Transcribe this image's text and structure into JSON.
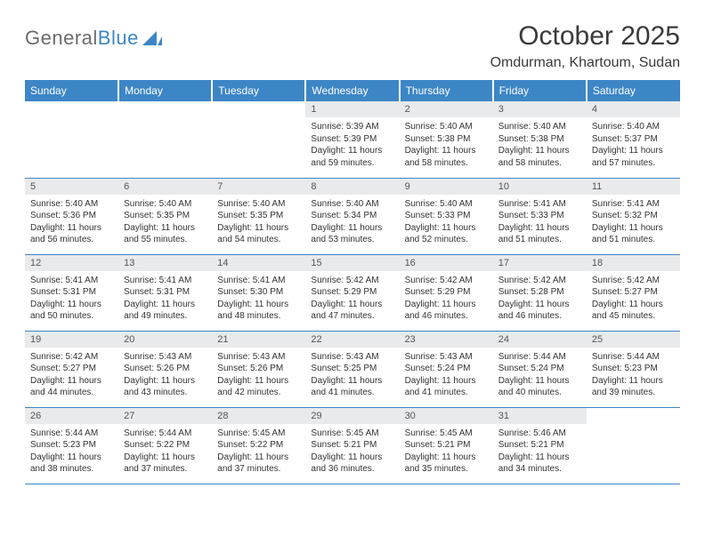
{
  "brand": {
    "word1": "General",
    "word2": "Blue"
  },
  "title": "October 2025",
  "location": "Omdurman, Khartoum, Sudan",
  "colors": {
    "accent": "#3d86c6",
    "header_bg": "#3d86c6",
    "daynum_bg": "#e9eaeb",
    "text": "#3a3a3a"
  },
  "weekdays": [
    "Sunday",
    "Monday",
    "Tuesday",
    "Wednesday",
    "Thursday",
    "Friday",
    "Saturday"
  ],
  "weeks": [
    [
      null,
      null,
      null,
      {
        "d": "1",
        "sr": "5:39 AM",
        "ss": "5:39 PM",
        "dl": "11 hours and 59 minutes."
      },
      {
        "d": "2",
        "sr": "5:40 AM",
        "ss": "5:38 PM",
        "dl": "11 hours and 58 minutes."
      },
      {
        "d": "3",
        "sr": "5:40 AM",
        "ss": "5:38 PM",
        "dl": "11 hours and 58 minutes."
      },
      {
        "d": "4",
        "sr": "5:40 AM",
        "ss": "5:37 PM",
        "dl": "11 hours and 57 minutes."
      }
    ],
    [
      {
        "d": "5",
        "sr": "5:40 AM",
        "ss": "5:36 PM",
        "dl": "11 hours and 56 minutes."
      },
      {
        "d": "6",
        "sr": "5:40 AM",
        "ss": "5:35 PM",
        "dl": "11 hours and 55 minutes."
      },
      {
        "d": "7",
        "sr": "5:40 AM",
        "ss": "5:35 PM",
        "dl": "11 hours and 54 minutes."
      },
      {
        "d": "8",
        "sr": "5:40 AM",
        "ss": "5:34 PM",
        "dl": "11 hours and 53 minutes."
      },
      {
        "d": "9",
        "sr": "5:40 AM",
        "ss": "5:33 PM",
        "dl": "11 hours and 52 minutes."
      },
      {
        "d": "10",
        "sr": "5:41 AM",
        "ss": "5:33 PM",
        "dl": "11 hours and 51 minutes."
      },
      {
        "d": "11",
        "sr": "5:41 AM",
        "ss": "5:32 PM",
        "dl": "11 hours and 51 minutes."
      }
    ],
    [
      {
        "d": "12",
        "sr": "5:41 AM",
        "ss": "5:31 PM",
        "dl": "11 hours and 50 minutes."
      },
      {
        "d": "13",
        "sr": "5:41 AM",
        "ss": "5:31 PM",
        "dl": "11 hours and 49 minutes."
      },
      {
        "d": "14",
        "sr": "5:41 AM",
        "ss": "5:30 PM",
        "dl": "11 hours and 48 minutes."
      },
      {
        "d": "15",
        "sr": "5:42 AM",
        "ss": "5:29 PM",
        "dl": "11 hours and 47 minutes."
      },
      {
        "d": "16",
        "sr": "5:42 AM",
        "ss": "5:29 PM",
        "dl": "11 hours and 46 minutes."
      },
      {
        "d": "17",
        "sr": "5:42 AM",
        "ss": "5:28 PM",
        "dl": "11 hours and 46 minutes."
      },
      {
        "d": "18",
        "sr": "5:42 AM",
        "ss": "5:27 PM",
        "dl": "11 hours and 45 minutes."
      }
    ],
    [
      {
        "d": "19",
        "sr": "5:42 AM",
        "ss": "5:27 PM",
        "dl": "11 hours and 44 minutes."
      },
      {
        "d": "20",
        "sr": "5:43 AM",
        "ss": "5:26 PM",
        "dl": "11 hours and 43 minutes."
      },
      {
        "d": "21",
        "sr": "5:43 AM",
        "ss": "5:26 PM",
        "dl": "11 hours and 42 minutes."
      },
      {
        "d": "22",
        "sr": "5:43 AM",
        "ss": "5:25 PM",
        "dl": "11 hours and 41 minutes."
      },
      {
        "d": "23",
        "sr": "5:43 AM",
        "ss": "5:24 PM",
        "dl": "11 hours and 41 minutes."
      },
      {
        "d": "24",
        "sr": "5:44 AM",
        "ss": "5:24 PM",
        "dl": "11 hours and 40 minutes."
      },
      {
        "d": "25",
        "sr": "5:44 AM",
        "ss": "5:23 PM",
        "dl": "11 hours and 39 minutes."
      }
    ],
    [
      {
        "d": "26",
        "sr": "5:44 AM",
        "ss": "5:23 PM",
        "dl": "11 hours and 38 minutes."
      },
      {
        "d": "27",
        "sr": "5:44 AM",
        "ss": "5:22 PM",
        "dl": "11 hours and 37 minutes."
      },
      {
        "d": "28",
        "sr": "5:45 AM",
        "ss": "5:22 PM",
        "dl": "11 hours and 37 minutes."
      },
      {
        "d": "29",
        "sr": "5:45 AM",
        "ss": "5:21 PM",
        "dl": "11 hours and 36 minutes."
      },
      {
        "d": "30",
        "sr": "5:45 AM",
        "ss": "5:21 PM",
        "dl": "11 hours and 35 minutes."
      },
      {
        "d": "31",
        "sr": "5:46 AM",
        "ss": "5:21 PM",
        "dl": "11 hours and 34 minutes."
      },
      null
    ]
  ],
  "labels": {
    "sunrise": "Sunrise:",
    "sunset": "Sunset:",
    "daylight": "Daylight:"
  }
}
